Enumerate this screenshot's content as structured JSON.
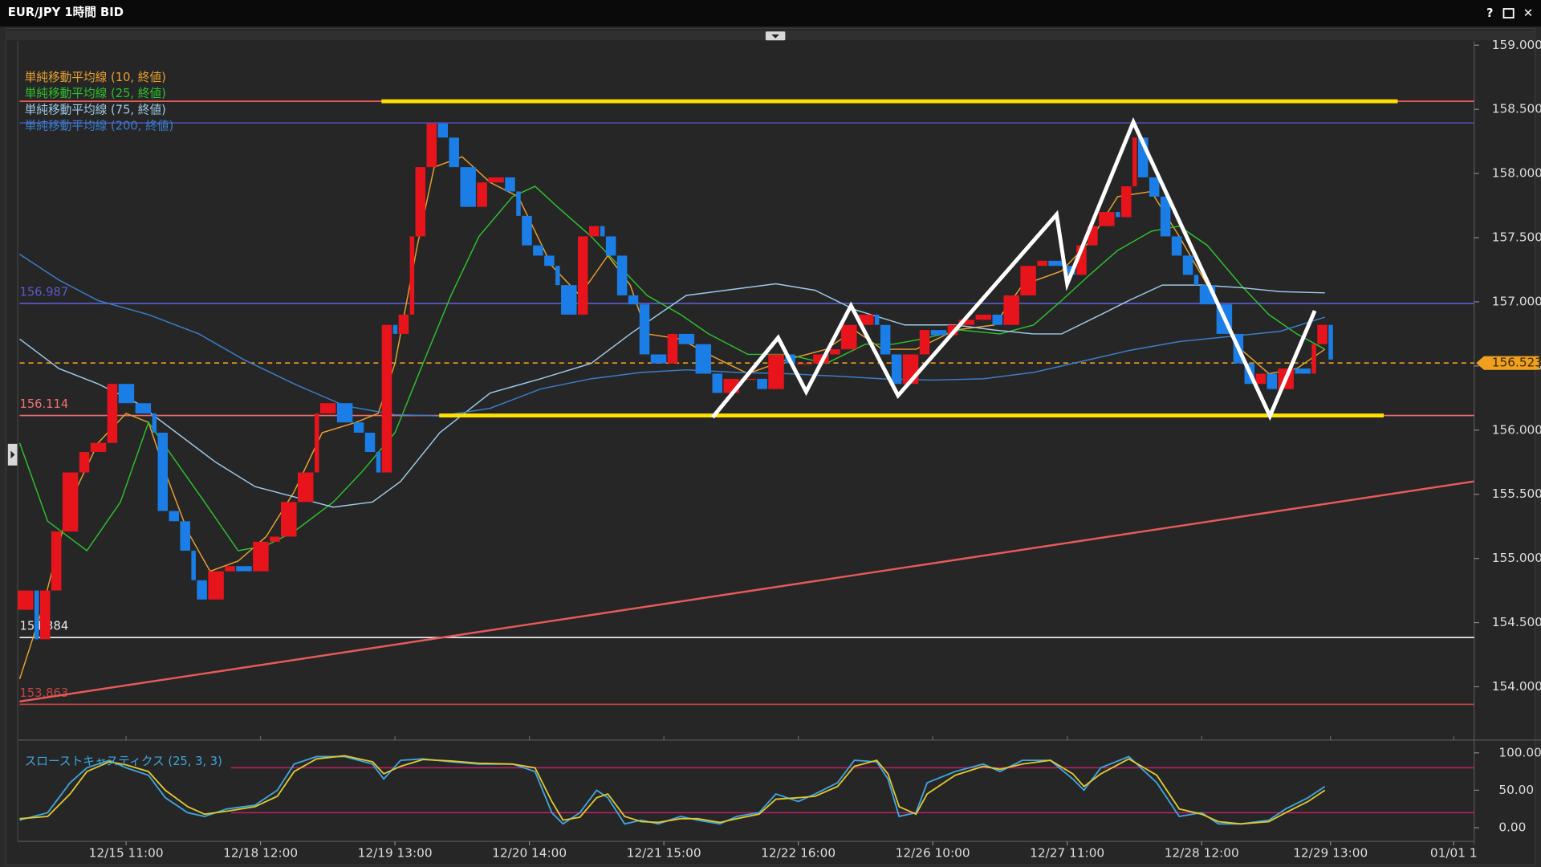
{
  "window": {
    "title": "EUR/JPY 1時間 BID",
    "buttons": [
      "?",
      "✕"
    ]
  },
  "chart_data": [
    {
      "type": "candlestick",
      "x": [
        0,
        3,
        4,
        6,
        8,
        11,
        13,
        16,
        18,
        21,
        24,
        25,
        27,
        29,
        31,
        32,
        34,
        37,
        39,
        42,
        45,
        47,
        50,
        53,
        54,
        57,
        60,
        62,
        64,
        65,
        67,
        68,
        70,
        71,
        73,
        75,
        77,
        79,
        82,
        84,
        87,
        89,
        90,
        92,
        94,
        96,
        97,
        100,
        102,
        104,
        105,
        107,
        109,
        111,
        113,
        116,
        118,
        121,
        124,
        126,
        129,
        132,
        134,
        137,
        139,
        142,
        145,
        147,
        150,
        153,
        154,
        156,
        158,
        161,
        163,
        166,
        168,
        171,
        174,
        176,
        179,
        182,
        184,
        187,
        189,
        191,
        193,
        196,
        197,
        199,
        200,
        202,
        204,
        206,
        208,
        210,
        211,
        214,
        217,
        219,
        221,
        223,
        225,
        228,
        231,
        232,
        234
      ],
      "open": [
        154.6,
        154.75,
        154.37,
        154.75,
        155.21,
        155.67,
        155.83,
        155.9,
        156.36,
        156.21,
        156.13,
        155.98,
        155.37,
        155.29,
        155.06,
        154.83,
        154.68,
        154.9,
        154.94,
        154.9,
        155.13,
        155.17,
        155.44,
        155.67,
        156.13,
        156.21,
        156.06,
        155.98,
        155.83,
        155.67,
        156.82,
        156.75,
        156.9,
        157.51,
        158.05,
        158.39,
        158.28,
        158.05,
        157.74,
        157.93,
        157.97,
        157.86,
        157.67,
        157.44,
        157.36,
        157.28,
        157.13,
        156.9,
        157.51,
        157.59,
        157.51,
        157.36,
        157.05,
        156.98,
        156.59,
        156.52,
        156.75,
        156.67,
        156.44,
        156.29,
        156.4,
        156.4,
        156.32,
        156.59,
        156.52,
        156.52,
        156.59,
        156.63,
        156.82,
        156.9,
        156.82,
        156.59,
        156.36,
        156.59,
        156.78,
        156.74,
        156.82,
        156.86,
        156.9,
        156.82,
        157.05,
        157.28,
        157.32,
        157.28,
        157.21,
        157.44,
        157.59,
        157.7,
        157.66,
        157.9,
        158.28,
        157.97,
        157.82,
        157.51,
        157.36,
        157.21,
        157.13,
        156.98,
        156.75,
        156.52,
        156.36,
        156.44,
        156.32,
        156.48,
        156.44,
        156.67,
        156.82
      ],
      "close": [
        154.75,
        154.37,
        154.75,
        155.21,
        155.67,
        155.83,
        155.9,
        156.36,
        156.21,
        156.13,
        155.98,
        155.37,
        155.29,
        155.06,
        154.83,
        154.68,
        154.9,
        154.94,
        154.9,
        155.13,
        155.17,
        155.44,
        155.67,
        156.13,
        156.21,
        156.06,
        155.98,
        155.83,
        155.67,
        156.82,
        156.75,
        156.9,
        157.51,
        158.05,
        158.39,
        158.28,
        158.05,
        157.74,
        157.93,
        157.97,
        157.86,
        157.67,
        157.44,
        157.36,
        157.28,
        157.13,
        156.9,
        157.51,
        157.59,
        157.51,
        157.36,
        157.05,
        156.98,
        156.59,
        156.52,
        156.75,
        156.67,
        156.44,
        156.29,
        156.4,
        156.4,
        156.32,
        156.59,
        156.52,
        156.52,
        156.59,
        156.63,
        156.82,
        156.9,
        156.82,
        156.59,
        156.36,
        156.59,
        156.78,
        156.74,
        156.82,
        156.86,
        156.9,
        156.82,
        157.05,
        157.28,
        157.32,
        157.28,
        157.21,
        157.44,
        157.59,
        157.7,
        157.66,
        157.9,
        158.28,
        157.97,
        157.82,
        157.51,
        157.36,
        157.21,
        157.13,
        156.98,
        156.75,
        156.52,
        156.36,
        156.44,
        156.32,
        156.48,
        156.44,
        156.67,
        156.82,
        156.55
      ],
      "up_color": "#e8141c",
      "down_color": "#1a7ee6",
      "xlim": [
        0,
        260
      ],
      "xticks": [
        {
          "value": 19,
          "label": "12/15 11:00"
        },
        {
          "value": 43,
          "label": "12/18 12:00"
        },
        {
          "value": 67,
          "label": "12/19 13:00"
        },
        {
          "value": 91,
          "label": "12/20 14:00"
        },
        {
          "value": 115,
          "label": "12/21 15:00"
        },
        {
          "value": 139,
          "label": "12/22 16:00"
        },
        {
          "value": 163,
          "label": "12/26 10:00"
        },
        {
          "value": 187,
          "label": "12/27 11:00"
        },
        {
          "value": 211,
          "label": "12/28 12:00"
        },
        {
          "value": 234,
          "label": "12/29 13:00"
        },
        {
          "value": 256,
          "label": "01/01 1"
        }
      ],
      "ylim": [
        153.6,
        159.03
      ],
      "yticks": [
        {
          "value": 154,
          "label": "154.000"
        },
        {
          "value": 154.5,
          "label": "154.500"
        },
        {
          "value": 155,
          "label": "155.000"
        },
        {
          "value": 155.5,
          "label": "155.500"
        },
        {
          "value": 156,
          "label": "156.000"
        },
        {
          "value": 156.5,
          "label": "156.500"
        },
        {
          "value": 157,
          "label": "157.000"
        },
        {
          "value": 157.5,
          "label": "157.500"
        },
        {
          "value": 158,
          "label": "158.000"
        },
        {
          "value": 158.5,
          "label": "158.500"
        },
        {
          "value": 159,
          "label": "159.000"
        }
      ],
      "series": [
        {
          "name": "単純移動平均線 (10, 終値)",
          "color": "#e8a030",
          "x": [
            0,
            4,
            9,
            14,
            19,
            23,
            26,
            30,
            34,
            39,
            44,
            49,
            54,
            60,
            64,
            67,
            71,
            74,
            79,
            84,
            89,
            95,
            100,
            105,
            109,
            112,
            118,
            123,
            130,
            137,
            144,
            149,
            154,
            160,
            167,
            174,
            179,
            186,
            191,
            196,
            202,
            207,
            212,
            218,
            223,
            228,
            233
          ],
          "values": [
            154.06,
            154.6,
            155.44,
            155.9,
            156.13,
            156.06,
            155.67,
            155.21,
            154.9,
            154.98,
            155.17,
            155.52,
            155.98,
            156.06,
            156.13,
            156.52,
            157.44,
            158.05,
            158.13,
            157.93,
            157.82,
            157.28,
            157.05,
            157.36,
            157.13,
            156.75,
            156.71,
            156.59,
            156.44,
            156.55,
            156.63,
            156.78,
            156.63,
            156.63,
            156.78,
            156.82,
            157.13,
            157.24,
            157.47,
            157.82,
            157.86,
            157.51,
            157.13,
            156.63,
            156.44,
            156.48,
            156.63
          ]
        },
        {
          "name": "単純移動平均線 (25, 終値)",
          "color": "#2ec02e",
          "x": [
            0,
            5,
            12,
            18,
            23,
            28,
            33,
            39,
            44,
            49,
            56,
            61,
            67,
            72,
            77,
            82,
            88,
            92,
            96,
            102,
            107,
            112,
            118,
            123,
            130,
            137,
            144,
            151,
            156,
            161,
            168,
            175,
            181,
            186,
            191,
            196,
            202,
            207,
            212,
            218,
            223,
            228,
            233
          ],
          "values": [
            155.9,
            155.29,
            155.06,
            155.44,
            156.06,
            155.75,
            155.44,
            155.06,
            155.1,
            155.21,
            155.44,
            155.67,
            155.98,
            156.52,
            157.05,
            157.51,
            157.82,
            157.9,
            157.74,
            157.51,
            157.28,
            157.05,
            156.9,
            156.75,
            156.59,
            156.59,
            156.52,
            156.67,
            156.67,
            156.71,
            156.78,
            156.75,
            156.82,
            157.01,
            157.21,
            157.4,
            157.55,
            157.59,
            157.44,
            157.13,
            156.9,
            156.75,
            156.63
          ]
        },
        {
          "name": "単純移動平均線 (75, 終値)",
          "color": "#9ec9e6",
          "x": [
            0,
            7,
            14,
            21,
            28,
            35,
            42,
            49,
            56,
            63,
            68,
            75,
            84,
            93,
            102,
            109,
            114,
            119,
            126,
            135,
            142,
            149,
            158,
            167,
            174,
            181,
            186,
            193,
            198,
            204,
            211,
            218,
            225,
            233
          ],
          "values": [
            156.71,
            156.48,
            156.36,
            156.21,
            155.98,
            155.75,
            155.56,
            155.48,
            155.4,
            155.44,
            155.6,
            155.98,
            156.29,
            156.4,
            156.52,
            156.75,
            156.9,
            157.05,
            157.09,
            157.14,
            157.09,
            156.94,
            156.82,
            156.82,
            156.78,
            156.75,
            156.75,
            156.9,
            157.01,
            157.13,
            157.13,
            157.11,
            157.08,
            157.07
          ]
        },
        {
          "name": "単純移動平均線 (200, 終値)",
          "color": "#3a7ec8",
          "x": [
            0,
            7,
            14,
            23,
            32,
            40,
            49,
            58,
            67,
            75,
            84,
            93,
            102,
            111,
            119,
            128,
            137,
            146,
            154,
            163,
            172,
            181,
            189,
            198,
            207,
            216,
            225,
            233
          ],
          "values": [
            157.37,
            157.17,
            157.01,
            156.9,
            156.75,
            156.55,
            156.36,
            156.19,
            156.12,
            156.11,
            156.17,
            156.32,
            156.4,
            156.45,
            156.47,
            156.45,
            156.44,
            156.42,
            156.4,
            156.39,
            156.4,
            156.45,
            156.53,
            156.62,
            156.69,
            156.73,
            156.77,
            156.88
          ]
        }
      ],
      "levels": [
        {
          "value": 158.563,
          "color": "#e85a5a",
          "show_label": false,
          "dashed": false
        },
        {
          "value": 158.394,
          "color": "#4a4aa8",
          "show_label": false,
          "dashed": false
        },
        {
          "value": 156.987,
          "color": "#5a5ac8",
          "show_label": true,
          "dashed": false
        },
        {
          "value": 156.114,
          "color": "#f07070",
          "show_label": true,
          "dashed": false
        },
        {
          "value": 154.384,
          "color": "#e8e8e8",
          "show_label": true,
          "dashed": false
        },
        {
          "value": 153.863,
          "color": "#c04444",
          "show_label": true,
          "dashed": false
        },
        {
          "value": 156.523,
          "color": "#f0a020",
          "show_label": false,
          "dashed": true,
          "tag": true
        }
      ],
      "trendlines": [
        {
          "color": "#ffe000",
          "width": 4,
          "x": [
            64.6,
            246
          ],
          "y": [
            158.563,
            158.563
          ]
        },
        {
          "color": "#ffe000",
          "width": 4,
          "x": [
            74.9,
            243.5
          ],
          "y": [
            156.114,
            156.114
          ]
        },
        {
          "color": "#e85a5a",
          "width": 2,
          "x": [
            0,
            259.6
          ],
          "y": [
            153.885,
            155.6
          ]
        },
        {
          "color": "#ffffff",
          "width": 4,
          "x": [
            123.7,
            135.4,
            140.4,
            148.4,
            156.8,
            185.1,
            187,
            198.8,
            223.2,
            231.2
          ],
          "y": [
            156.1,
            156.72,
            156.3,
            156.97,
            156.27,
            157.68,
            157.14,
            158.4,
            156.11,
            156.93
          ]
        }
      ]
    },
    {
      "type": "line",
      "title": "スローストキャスティクス (25, 3, 3)",
      "x": [
        0,
        5,
        9,
        12,
        16,
        19,
        23,
        26,
        30,
        33,
        37,
        42,
        46,
        49,
        53,
        58,
        63,
        65,
        68,
        72,
        77,
        82,
        88,
        92,
        95,
        97,
        100,
        103,
        105,
        108,
        111,
        114,
        118,
        121,
        125,
        128,
        132,
        135,
        139,
        142,
        146,
        149,
        153,
        155,
        157,
        160,
        162,
        167,
        172,
        175,
        179,
        184,
        188,
        190,
        193,
        198,
        203,
        207,
        211,
        214,
        218,
        223,
        226,
        230,
        233
      ],
      "series": [
        {
          "color": "#3ea6e0",
          "values": [
            10,
            20,
            60,
            80,
            90,
            80,
            70,
            40,
            20,
            15,
            25,
            30,
            50,
            85,
            95,
            95,
            85,
            65,
            90,
            92,
            88,
            85,
            85,
            75,
            20,
            5,
            20,
            50,
            40,
            5,
            10,
            5,
            15,
            10,
            5,
            15,
            20,
            45,
            35,
            45,
            60,
            90,
            88,
            65,
            15,
            20,
            60,
            75,
            85,
            75,
            90,
            90,
            65,
            50,
            80,
            95,
            60,
            15,
            20,
            5,
            5,
            10,
            25,
            40,
            55
          ]
        },
        {
          "color": "#e0c830",
          "values": [
            12,
            15,
            45,
            75,
            88,
            84,
            75,
            50,
            28,
            18,
            22,
            28,
            42,
            75,
            92,
            96,
            88,
            72,
            82,
            91,
            89,
            86,
            85,
            80,
            35,
            10,
            14,
            40,
            45,
            15,
            8,
            7,
            12,
            12,
            7,
            12,
            18,
            38,
            40,
            42,
            55,
            82,
            90,
            72,
            28,
            18,
            45,
            70,
            82,
            78,
            85,
            90,
            72,
            55,
            72,
            92,
            70,
            25,
            18,
            8,
            5,
            8,
            20,
            35,
            50
          ]
        }
      ],
      "xlim": [
        0,
        260
      ],
      "ylim": [
        -11.8,
        110.5
      ],
      "yticks": [
        {
          "value": 0,
          "label": "0.00"
        },
        {
          "value": 50,
          "label": "50.00"
        },
        {
          "value": 100,
          "label": "100.00"
        }
      ],
      "bands": [
        20,
        80
      ],
      "band_color": "#c0206a"
    }
  ]
}
